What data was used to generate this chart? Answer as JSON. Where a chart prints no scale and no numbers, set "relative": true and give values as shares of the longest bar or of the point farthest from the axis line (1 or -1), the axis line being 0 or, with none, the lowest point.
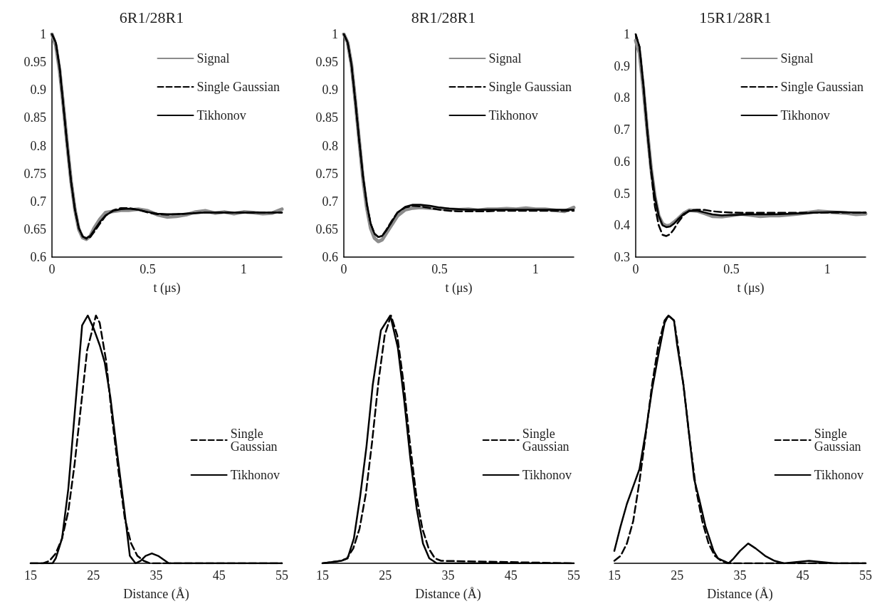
{
  "chart_data": [
    {
      "type": "line",
      "title": "6R1/28R1",
      "xlabel": "t (μs)",
      "xlim": [
        0,
        1.2
      ],
      "xticks": [
        0,
        0.5,
        1
      ],
      "ylim": [
        0.6,
        1
      ],
      "yticks": [
        0.6,
        0.65,
        0.7,
        0.75,
        0.8,
        0.85,
        0.9,
        0.95,
        1
      ],
      "legend": "top right",
      "marker": "none",
      "x": [
        0,
        0.02,
        0.04,
        0.06,
        0.08,
        0.1,
        0.12,
        0.14,
        0.16,
        0.18,
        0.2,
        0.22,
        0.25,
        0.28,
        0.32,
        0.36,
        0.4,
        0.45,
        0.5,
        0.55,
        0.6,
        0.65,
        0.7,
        0.75,
        0.8,
        0.85,
        0.9,
        0.95,
        1.0,
        1.05,
        1.1,
        1.15,
        1.2
      ],
      "series": [
        {
          "name": "Signal",
          "color": "#8c8c8c",
          "line_style": "solid",
          "values": [
            1.0,
            0.98,
            0.935,
            0.87,
            0.8,
            0.735,
            0.685,
            0.65,
            0.635,
            0.632,
            0.638,
            0.652,
            0.668,
            0.68,
            0.682,
            0.684,
            0.684,
            0.686,
            0.683,
            0.676,
            0.672,
            0.673,
            0.676,
            0.681,
            0.683,
            0.679,
            0.681,
            0.678,
            0.681,
            0.68,
            0.678,
            0.679,
            0.686
          ]
        },
        {
          "name": "Single Gaussian",
          "color": "#000000",
          "line_style": "dashed",
          "values": [
            1.0,
            0.985,
            0.94,
            0.87,
            0.8,
            0.735,
            0.685,
            0.652,
            0.637,
            0.633,
            0.636,
            0.645,
            0.66,
            0.674,
            0.684,
            0.688,
            0.688,
            0.685,
            0.68,
            0.677,
            0.676,
            0.677,
            0.678,
            0.679,
            0.68,
            0.68,
            0.68,
            0.68,
            0.68,
            0.68,
            0.68,
            0.68,
            0.68
          ]
        },
        {
          "name": "Tikhonov",
          "color": "#000000",
          "line_style": "solid",
          "values": [
            1.0,
            0.985,
            0.94,
            0.87,
            0.8,
            0.735,
            0.685,
            0.652,
            0.637,
            0.634,
            0.638,
            0.648,
            0.663,
            0.675,
            0.683,
            0.686,
            0.687,
            0.685,
            0.681,
            0.678,
            0.677,
            0.677,
            0.678,
            0.679,
            0.68,
            0.68,
            0.68,
            0.68,
            0.68,
            0.68,
            0.68,
            0.68,
            0.68
          ]
        }
      ]
    },
    {
      "type": "line",
      "title": "8R1/28R1",
      "xlabel": "t (μs)",
      "xlim": [
        0,
        1.2
      ],
      "xticks": [
        0,
        0.5,
        1
      ],
      "ylim": [
        0.6,
        1
      ],
      "yticks": [
        0.6,
        0.65,
        0.7,
        0.75,
        0.8,
        0.85,
        0.9,
        0.95,
        1
      ],
      "legend": "top right",
      "marker": "none",
      "x": [
        0,
        0.02,
        0.04,
        0.06,
        0.08,
        0.1,
        0.12,
        0.14,
        0.16,
        0.18,
        0.2,
        0.22,
        0.25,
        0.28,
        0.32,
        0.36,
        0.4,
        0.45,
        0.5,
        0.55,
        0.6,
        0.65,
        0.7,
        0.75,
        0.8,
        0.85,
        0.9,
        0.95,
        1.0,
        1.05,
        1.1,
        1.15,
        1.2
      ],
      "series": [
        {
          "name": "Signal",
          "color": "#8c8c8c",
          "line_style": "solid",
          "values": [
            1.0,
            0.985,
            0.945,
            0.88,
            0.81,
            0.74,
            0.688,
            0.652,
            0.634,
            0.628,
            0.631,
            0.642,
            0.658,
            0.674,
            0.685,
            0.688,
            0.689,
            0.688,
            0.687,
            0.686,
            0.685,
            0.686,
            0.684,
            0.686,
            0.686,
            0.687,
            0.686,
            0.688,
            0.686,
            0.686,
            0.684,
            0.682,
            0.689
          ]
        },
        {
          "name": "Single Gaussian",
          "color": "#000000",
          "line_style": "dashed",
          "values": [
            1.0,
            0.985,
            0.945,
            0.88,
            0.81,
            0.745,
            0.695,
            0.66,
            0.642,
            0.636,
            0.638,
            0.648,
            0.665,
            0.68,
            0.689,
            0.692,
            0.691,
            0.688,
            0.685,
            0.683,
            0.682,
            0.682,
            0.682,
            0.682,
            0.683,
            0.683,
            0.683,
            0.683,
            0.683,
            0.683,
            0.683,
            0.683,
            0.683
          ]
        },
        {
          "name": "Tikhonov",
          "color": "#000000",
          "line_style": "solid",
          "values": [
            1.0,
            0.985,
            0.945,
            0.88,
            0.81,
            0.745,
            0.695,
            0.66,
            0.642,
            0.636,
            0.638,
            0.647,
            0.663,
            0.68,
            0.69,
            0.694,
            0.694,
            0.692,
            0.689,
            0.687,
            0.686,
            0.685,
            0.685,
            0.685,
            0.685,
            0.685,
            0.685,
            0.685,
            0.685,
            0.685,
            0.685,
            0.685,
            0.685
          ]
        }
      ]
    },
    {
      "type": "line",
      "title": "15R1/28R1",
      "xlabel": "t (μs)",
      "xlim": [
        0,
        1.2
      ],
      "xticks": [
        0,
        0.5,
        1
      ],
      "ylim": [
        0.3,
        1
      ],
      "yticks": [
        0.3,
        0.4,
        0.5,
        0.6,
        0.7,
        0.8,
        0.9,
        1
      ],
      "legend": "top right",
      "marker": "none",
      "x": [
        0,
        0.02,
        0.04,
        0.06,
        0.08,
        0.1,
        0.12,
        0.14,
        0.16,
        0.18,
        0.2,
        0.22,
        0.25,
        0.28,
        0.32,
        0.36,
        0.4,
        0.45,
        0.5,
        0.55,
        0.6,
        0.65,
        0.7,
        0.75,
        0.8,
        0.85,
        0.9,
        0.95,
        1.0,
        1.05,
        1.1,
        1.15,
        1.2
      ],
      "series": [
        {
          "name": "Signal",
          "color": "#8c8c8c",
          "line_style": "solid",
          "values": [
            0.98,
            0.94,
            0.83,
            0.7,
            0.58,
            0.49,
            0.43,
            0.405,
            0.398,
            0.4,
            0.41,
            0.42,
            0.437,
            0.447,
            0.445,
            0.437,
            0.428,
            0.427,
            0.431,
            0.435,
            0.432,
            0.428,
            0.43,
            0.43,
            0.433,
            0.436,
            0.44,
            0.444,
            0.442,
            0.44,
            0.438,
            0.434,
            0.436
          ]
        },
        {
          "name": "Single Gaussian",
          "color": "#000000",
          "line_style": "dashed",
          "values": [
            1.0,
            0.96,
            0.84,
            0.7,
            0.57,
            0.46,
            0.4,
            0.37,
            0.366,
            0.372,
            0.388,
            0.408,
            0.432,
            0.446,
            0.449,
            0.448,
            0.444,
            0.441,
            0.44,
            0.439,
            0.439,
            0.439,
            0.439,
            0.439,
            0.439,
            0.439,
            0.439,
            0.439,
            0.44,
            0.44,
            0.44,
            0.44,
            0.44
          ]
        },
        {
          "name": "Tikhonov",
          "color": "#000000",
          "line_style": "solid",
          "values": [
            1.0,
            0.96,
            0.84,
            0.7,
            0.58,
            0.49,
            0.43,
            0.4,
            0.394,
            0.396,
            0.405,
            0.418,
            0.435,
            0.445,
            0.446,
            0.44,
            0.434,
            0.431,
            0.432,
            0.433,
            0.434,
            0.434,
            0.434,
            0.435,
            0.436,
            0.437,
            0.438,
            0.44,
            0.441,
            0.442,
            0.441,
            0.44,
            0.44
          ]
        }
      ]
    },
    {
      "type": "line",
      "xlabel": "Distance (Å)",
      "xlim": [
        15,
        55
      ],
      "xticks": [
        15,
        25,
        35,
        45,
        55
      ],
      "relative": true,
      "legend": "right",
      "marker": "none",
      "series": [
        {
          "name": "Single Gaussian",
          "color": "#000000",
          "line_style": "dashed",
          "x": [
            15,
            16,
            17,
            18,
            19,
            20,
            21,
            22,
            23,
            24,
            25.4,
            26,
            27,
            28,
            29,
            30,
            31,
            32,
            33,
            34,
            35,
            36,
            55
          ],
          "values": [
            0,
            0,
            0,
            0.01,
            0.04,
            0.1,
            0.21,
            0.4,
            0.63,
            0.86,
            1,
            0.97,
            0.82,
            0.58,
            0.37,
            0.18,
            0.08,
            0.03,
            0.01,
            0,
            0,
            0,
            0
          ]
        },
        {
          "name": "Tikhonov",
          "color": "#000000",
          "line_style": "solid",
          "x": [
            15,
            18.5,
            19,
            20,
            21,
            22,
            23.2,
            24.1,
            25,
            26,
            26.8,
            27.7,
            28.8,
            29.9,
            30.8,
            31.7,
            32.5,
            33.3,
            34.3,
            35.3,
            37,
            55
          ],
          "values": [
            0,
            0,
            0.02,
            0.1,
            0.3,
            0.6,
            0.96,
            1,
            0.95,
            0.88,
            0.81,
            0.67,
            0.44,
            0.22,
            0.03,
            0,
            0.01,
            0.03,
            0.04,
            0.03,
            0,
            0
          ]
        }
      ]
    },
    {
      "type": "line",
      "xlabel": "Distance (Å)",
      "xlim": [
        15,
        55
      ],
      "xticks": [
        15,
        25,
        35,
        45,
        55
      ],
      "relative": true,
      "legend": "right",
      "marker": "none",
      "series": [
        {
          "name": "Single Gaussian",
          "color": "#000000",
          "line_style": "dashed",
          "x": [
            15,
            17.9,
            18.9,
            19.9,
            20.9,
            21.9,
            22.9,
            23.9,
            24.9,
            25.9,
            26.9,
            27.9,
            28.9,
            29.9,
            30.9,
            31.9,
            32.9,
            33.9,
            55
          ],
          "values": [
            0,
            0.01,
            0.02,
            0.06,
            0.14,
            0.28,
            0.49,
            0.73,
            0.92,
            1,
            0.92,
            0.73,
            0.49,
            0.28,
            0.14,
            0.06,
            0.02,
            0.01,
            0
          ]
        },
        {
          "name": "Tikhonov",
          "color": "#000000",
          "line_style": "solid",
          "x": [
            15,
            18,
            19,
            20,
            21,
            22,
            23,
            24.3,
            25.8,
            27,
            28,
            29,
            30,
            31,
            32,
            33.2,
            55
          ],
          "values": [
            0,
            0.01,
            0.02,
            0.1,
            0.27,
            0.47,
            0.72,
            0.94,
            1,
            0.87,
            0.66,
            0.42,
            0.22,
            0.08,
            0.02,
            0,
            0
          ]
        }
      ]
    },
    {
      "type": "line",
      "xlabel": "Distance (Å)",
      "xlim": [
        15,
        55
      ],
      "xticks": [
        15,
        25,
        35,
        45,
        55
      ],
      "relative": true,
      "legend": "right",
      "marker": "none",
      "series": [
        {
          "name": "Single Gaussian",
          "color": "#000000",
          "line_style": "dashed",
          "x": [
            15,
            16,
            17,
            18,
            19,
            20,
            21,
            22,
            23,
            23.6,
            24.5,
            25,
            26,
            27,
            28,
            29,
            30,
            31,
            32,
            33,
            55
          ],
          "values": [
            0.01,
            0.03,
            0.08,
            0.17,
            0.33,
            0.52,
            0.72,
            0.88,
            0.98,
            1,
            0.98,
            0.9,
            0.72,
            0.5,
            0.3,
            0.17,
            0.08,
            0.03,
            0.01,
            0,
            0
          ]
        },
        {
          "name": "Tikhonov",
          "color": "#000000",
          "line_style": "solid",
          "x": [
            15,
            16,
            17,
            18,
            19,
            20,
            21,
            22,
            23,
            23.6,
            24.5,
            25,
            26,
            27.7,
            28.5,
            29.5,
            30.8,
            31.5,
            33.2,
            34,
            35,
            36.3,
            37.5,
            39,
            40.5,
            42,
            46,
            50,
            55
          ],
          "values": [
            0.05,
            0.15,
            0.24,
            0.31,
            0.38,
            0.53,
            0.7,
            0.84,
            0.97,
            1,
            0.98,
            0.88,
            0.72,
            0.34,
            0.26,
            0.15,
            0.05,
            0.02,
            0,
            0.02,
            0.05,
            0.08,
            0.06,
            0.03,
            0.01,
            0,
            0.01,
            0,
            0
          ]
        }
      ]
    }
  ]
}
